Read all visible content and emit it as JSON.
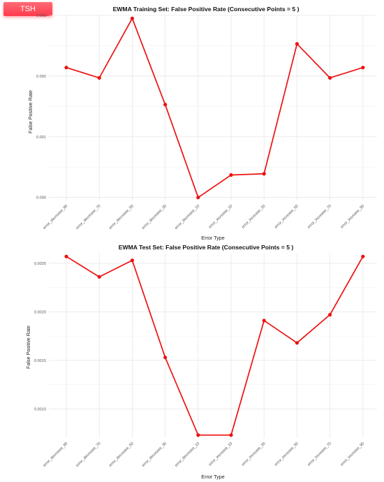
{
  "badge": {
    "label": "TSH"
  },
  "chart_data": [
    {
      "type": "line",
      "title": "EWMA Training Set: False Positive Rate (Consecutive Points = 5 )",
      "xlabel": "Error Type",
      "ylabel": "False Positive Rate",
      "categories": [
        "error_decrease_90",
        "error_decrease_70",
        "error_decrease_50",
        "error_decrease_30",
        "error_decrease_10",
        "error_increase_10",
        "error_increase_30",
        "error_increase_50",
        "error_increase_70",
        "error_increase_90"
      ],
      "values": [
        0.00214,
        0.00197,
        0.00295,
        0.00153,
        0.0,
        0.00037,
        0.00039,
        0.00253,
        0.00197,
        0.00214
      ],
      "yticks": [
        0.0,
        0.001,
        0.002,
        0.003
      ],
      "ytick_labels": [
        "0.000",
        "0.001",
        "0.002",
        "0.003"
      ],
      "ylim": [
        -5e-05,
        0.003
      ],
      "color": "#ee1111",
      "grid": true
    },
    {
      "type": "line",
      "title": "EWMA Test Set: False Positive Rate (Consecutive Points = 5 )",
      "xlabel": "Error Type",
      "ylabel": "False Positive Rate",
      "categories": [
        "error_decrease_90",
        "error_decrease_70",
        "error_decrease_50",
        "error_decrease_30",
        "error_decrease_10",
        "error_increase_10",
        "error_increase_30",
        "error_increase_50",
        "error_increase_70",
        "error_increase_90"
      ],
      "values": [
        0.00257,
        0.00236,
        0.00253,
        0.00153,
        0.00073,
        0.00073,
        0.00191,
        0.00168,
        0.00197,
        0.00257
      ],
      "yticks": [
        0.001,
        0.0015,
        0.002,
        0.0025
      ],
      "ytick_labels": [
        "0.0010",
        "0.0015",
        "0.0020",
        "0.0025"
      ],
      "ylim": [
        0.0007,
        0.0026
      ],
      "color": "#ee1111",
      "grid": true
    }
  ]
}
